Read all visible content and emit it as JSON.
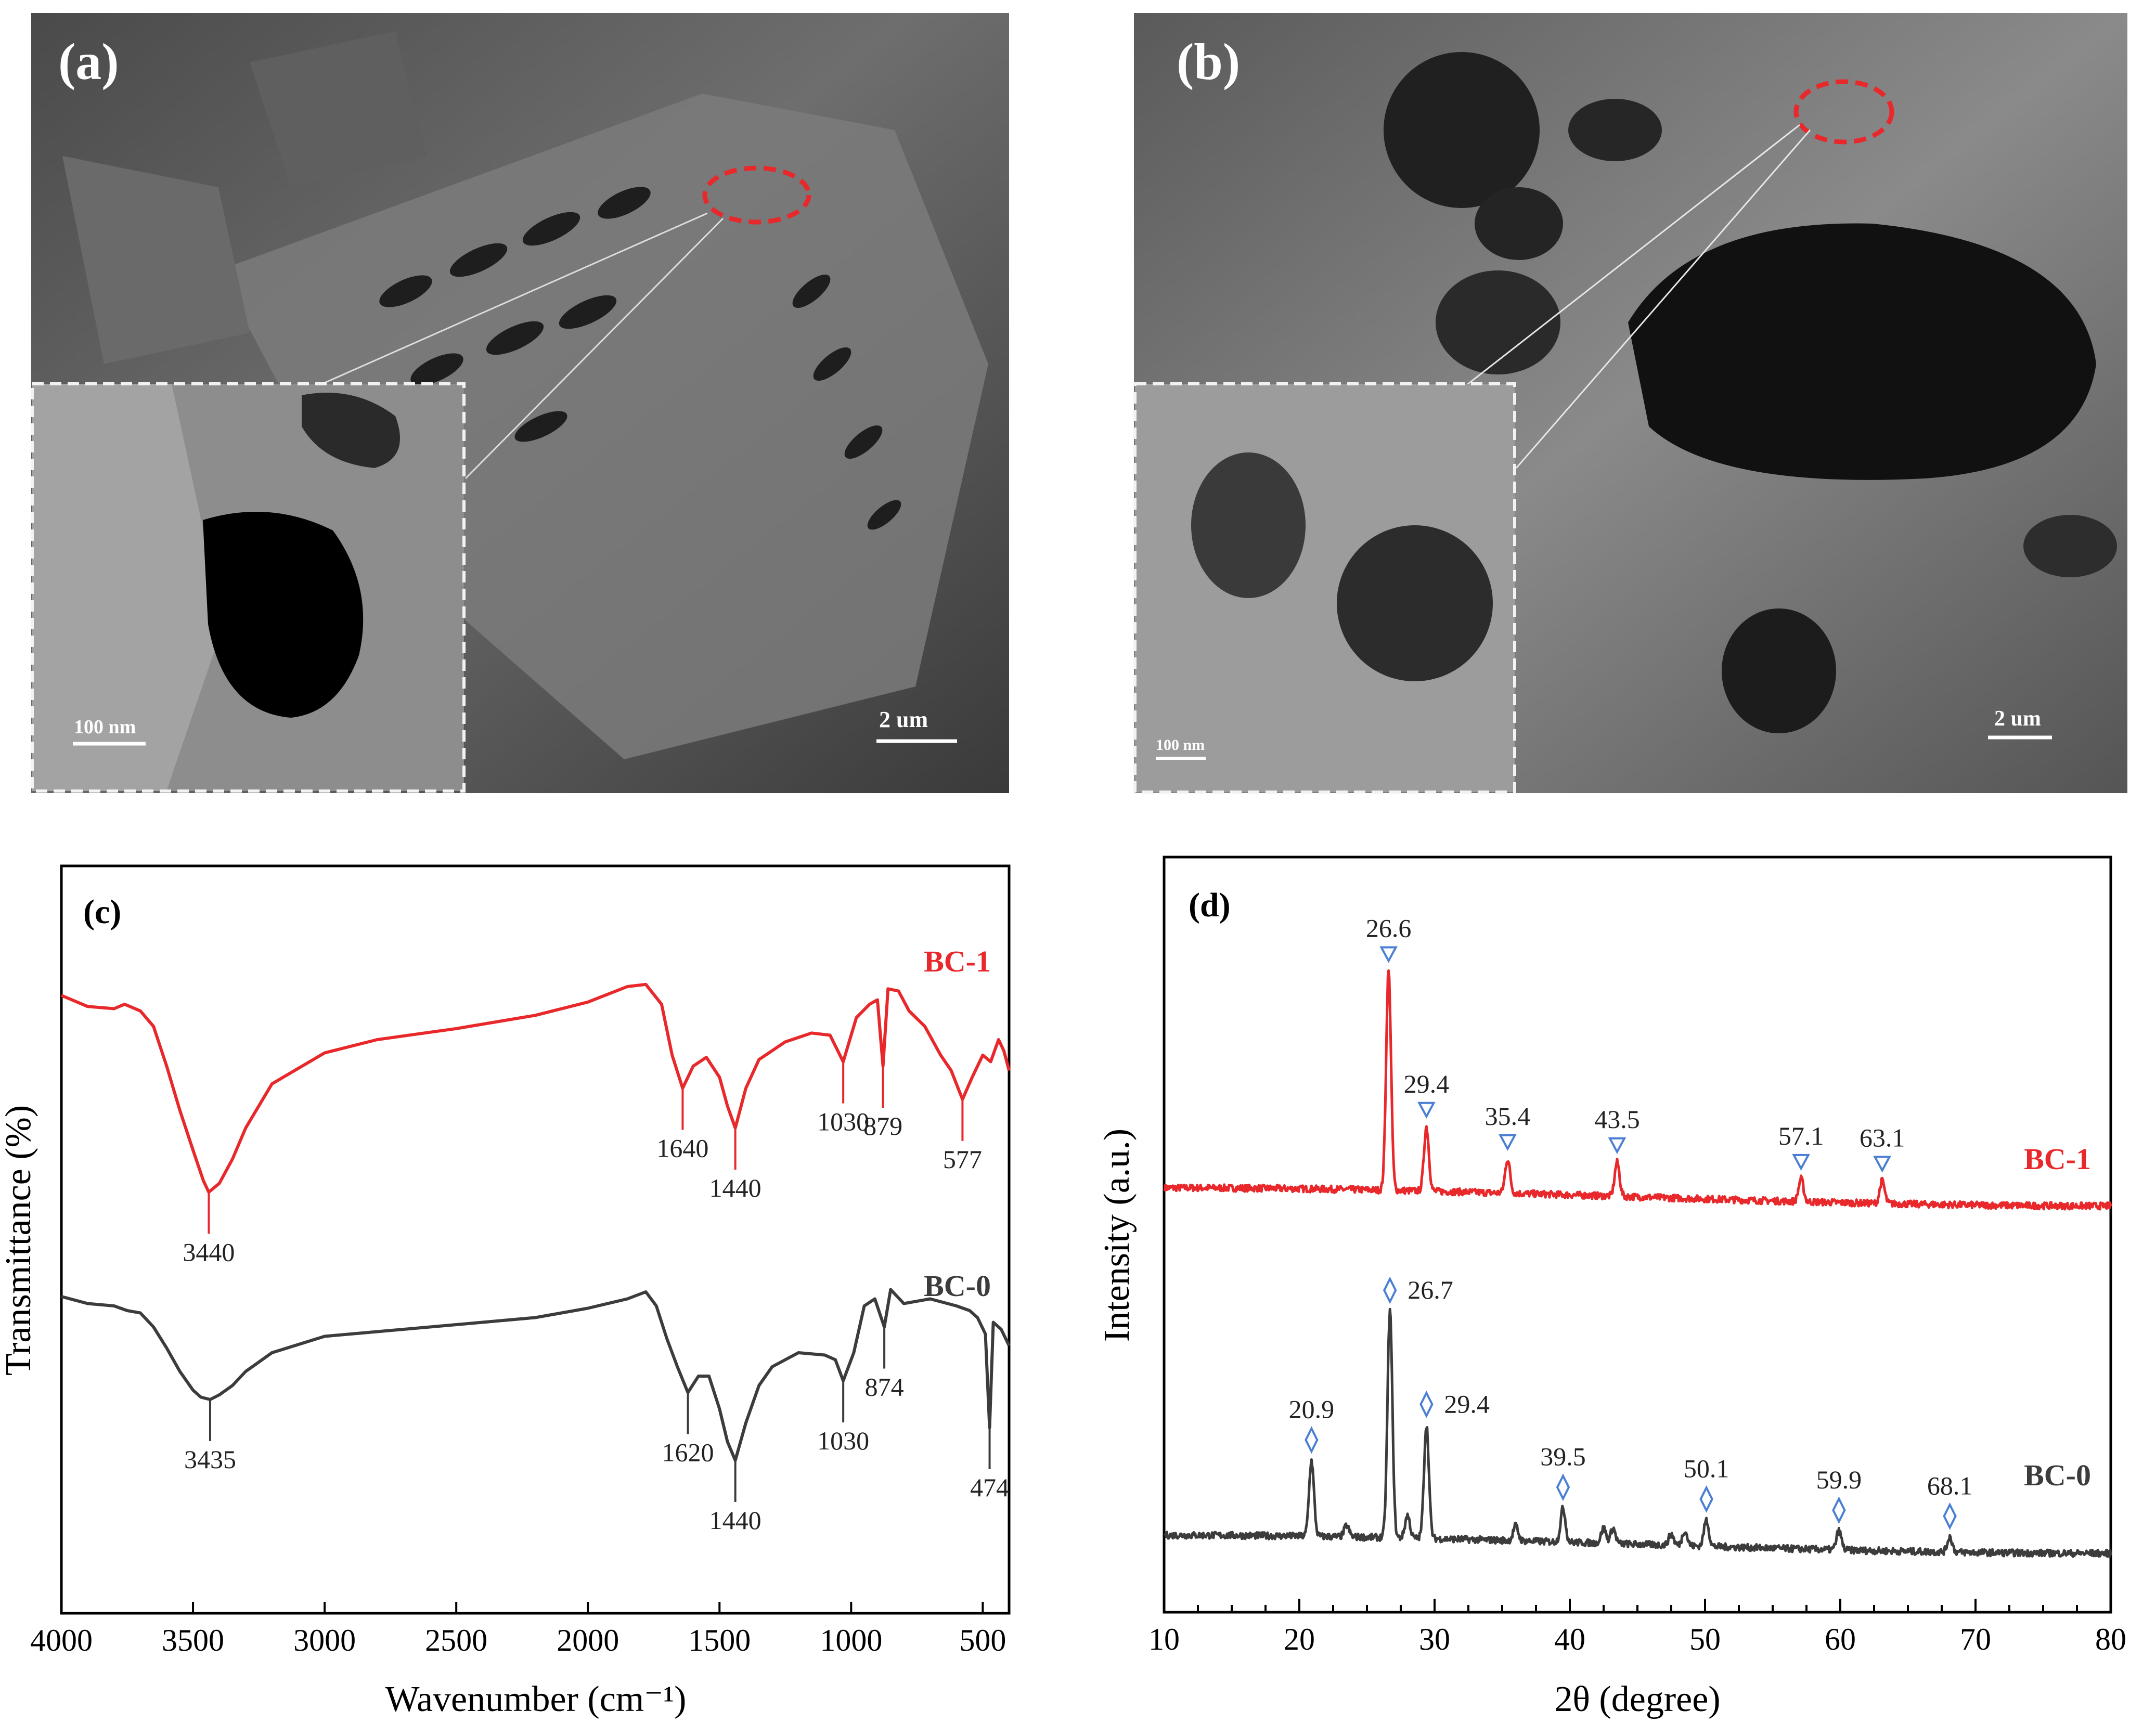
{
  "panels": {
    "a": {
      "label": "(a)",
      "scale_main": "2 um",
      "scale_inset": "100 nm"
    },
    "b": {
      "label": "(b)",
      "scale_main": "2 um",
      "scale_inset": "100 nm"
    },
    "c": {
      "label": "(c)"
    },
    "d": {
      "label": "(d)"
    }
  },
  "colors": {
    "bc1": "#e8282b",
    "bc0": "#3c3c3c",
    "marker": "#4a7fd4",
    "frame": "#000000"
  },
  "chart_data": [
    {
      "id": "c",
      "type": "line",
      "xlabel": "Wavenumber (cm⁻¹)",
      "ylabel": "Transmittance (%)",
      "xlim": [
        4000,
        400
      ],
      "xticks": [
        4000,
        3500,
        3000,
        2500,
        2000,
        1500,
        1000,
        500
      ],
      "series": [
        {
          "name": "BC-1",
          "color": "#e8282b",
          "x": [
            4000,
            3900,
            3800,
            3760,
            3700,
            3650,
            3600,
            3550,
            3500,
            3460,
            3440,
            3400,
            3350,
            3300,
            3200,
            3000,
            2800,
            2500,
            2200,
            2000,
            1850,
            1780,
            1720,
            1680,
            1640,
            1600,
            1550,
            1500,
            1470,
            1440,
            1400,
            1350,
            1250,
            1150,
            1080,
            1030,
            980,
            930,
            900,
            879,
            860,
            820,
            780,
            720,
            660,
            620,
            577,
            540,
            500,
            470,
            440,
            420,
            400
          ],
          "y": [
            0.92,
            0.87,
            0.86,
            0.88,
            0.85,
            0.78,
            0.6,
            0.4,
            0.22,
            0.08,
            0.03,
            0.07,
            0.18,
            0.32,
            0.52,
            0.66,
            0.72,
            0.77,
            0.83,
            0.89,
            0.96,
            0.97,
            0.88,
            0.65,
            0.5,
            0.6,
            0.64,
            0.55,
            0.42,
            0.32,
            0.5,
            0.63,
            0.71,
            0.75,
            0.74,
            0.62,
            0.82,
            0.88,
            0.9,
            0.6,
            0.95,
            0.94,
            0.85,
            0.78,
            0.65,
            0.58,
            0.45,
            0.55,
            0.65,
            0.62,
            0.72,
            0.67,
            0.58
          ]
        },
        {
          "name": "BC-0",
          "color": "#3c3c3c",
          "x": [
            4000,
            3900,
            3800,
            3750,
            3700,
            3650,
            3600,
            3550,
            3500,
            3470,
            3435,
            3400,
            3350,
            3300,
            3200,
            3000,
            2800,
            2500,
            2200,
            2000,
            1850,
            1780,
            1740,
            1700,
            1660,
            1620,
            1580,
            1540,
            1500,
            1470,
            1440,
            1400,
            1350,
            1300,
            1200,
            1100,
            1060,
            1030,
            990,
            950,
            910,
            874,
            850,
            800,
            700,
            600,
            550,
            520,
            490,
            474,
            460,
            430,
            400
          ],
          "y": [
            0.96,
            0.93,
            0.92,
            0.9,
            0.89,
            0.83,
            0.74,
            0.64,
            0.56,
            0.53,
            0.52,
            0.54,
            0.58,
            0.64,
            0.72,
            0.79,
            0.81,
            0.84,
            0.87,
            0.91,
            0.95,
            0.98,
            0.92,
            0.78,
            0.66,
            0.55,
            0.62,
            0.62,
            0.48,
            0.34,
            0.26,
            0.42,
            0.58,
            0.66,
            0.72,
            0.71,
            0.69,
            0.6,
            0.72,
            0.92,
            0.95,
            0.83,
            0.99,
            0.93,
            0.95,
            0.92,
            0.9,
            0.87,
            0.8,
            0.4,
            0.85,
            0.82,
            0.75
          ]
        }
      ],
      "annotations": [
        {
          "series": "BC-1",
          "x": 3440,
          "label": "3440"
        },
        {
          "series": "BC-1",
          "x": 1640,
          "label": "1640"
        },
        {
          "series": "BC-1",
          "x": 1440,
          "label": "1440"
        },
        {
          "series": "BC-1",
          "x": 1030,
          "label": "1030"
        },
        {
          "series": "BC-1",
          "x": 879,
          "label": "879"
        },
        {
          "series": "BC-1",
          "x": 577,
          "label": "577"
        },
        {
          "series": "BC-0",
          "x": 3435,
          "label": "3435"
        },
        {
          "series": "BC-0",
          "x": 1620,
          "label": "1620"
        },
        {
          "series": "BC-0",
          "x": 1440,
          "label": "1440"
        },
        {
          "series": "BC-0",
          "x": 1030,
          "label": "1030"
        },
        {
          "series": "BC-0",
          "x": 874,
          "label": "874"
        },
        {
          "series": "BC-0",
          "x": 474,
          "label": "474"
        }
      ],
      "grid": false
    },
    {
      "id": "d",
      "type": "line",
      "xlabel": "2θ (degree)",
      "ylabel": "Intensity (a.u.)",
      "xlim": [
        10,
        80
      ],
      "xticks": [
        10,
        20,
        30,
        40,
        50,
        60,
        70,
        80
      ],
      "series": [
        {
          "name": "BC-1",
          "color": "#e8282b",
          "baseline": 0.55,
          "peaks": [
            [
              26.6,
              0.29
            ],
            [
              29.4,
              0.085
            ],
            [
              35.4,
              0.045
            ],
            [
              43.5,
              0.045
            ],
            [
              57.1,
              0.03
            ],
            [
              63.1,
              0.03
            ]
          ]
        },
        {
          "name": "BC-0",
          "color": "#3c3c3c",
          "baseline": 0.09,
          "peaks": [
            [
              20.9,
              0.1
            ],
            [
              23.5,
              0.015
            ],
            [
              26.7,
              0.3
            ],
            [
              28.0,
              0.03
            ],
            [
              29.4,
              0.15
            ],
            [
              36.0,
              0.02
            ],
            [
              39.5,
              0.045
            ],
            [
              42.5,
              0.02
            ],
            [
              43.2,
              0.02
            ],
            [
              47.5,
              0.015
            ],
            [
              48.5,
              0.02
            ],
            [
              50.1,
              0.035
            ],
            [
              59.9,
              0.025
            ],
            [
              68.1,
              0.02
            ]
          ]
        }
      ],
      "annotations": [
        {
          "series": "BC-1",
          "x": 26.6,
          "label": "26.6",
          "marker": "triangle"
        },
        {
          "series": "BC-1",
          "x": 29.4,
          "label": "29.4",
          "marker": "triangle"
        },
        {
          "series": "BC-1",
          "x": 35.4,
          "label": "35.4",
          "marker": "triangle"
        },
        {
          "series": "BC-1",
          "x": 43.5,
          "label": "43.5",
          "marker": "triangle"
        },
        {
          "series": "BC-1",
          "x": 57.1,
          "label": "57.1",
          "marker": "triangle"
        },
        {
          "series": "BC-1",
          "x": 63.1,
          "label": "63.1",
          "marker": "triangle"
        },
        {
          "series": "BC-0",
          "x": 20.9,
          "label": "20.9",
          "marker": "diamond"
        },
        {
          "series": "BC-0",
          "x": 26.7,
          "label": "26.7",
          "marker": "diamond"
        },
        {
          "series": "BC-0",
          "x": 29.4,
          "label": "29.4",
          "marker": "diamond"
        },
        {
          "series": "BC-0",
          "x": 39.5,
          "label": "39.5",
          "marker": "diamond"
        },
        {
          "series": "BC-0",
          "x": 50.1,
          "label": "50.1",
          "marker": "diamond"
        },
        {
          "series": "BC-0",
          "x": 59.9,
          "label": "59.9",
          "marker": "diamond"
        },
        {
          "series": "BC-0",
          "x": 68.1,
          "label": "68.1",
          "marker": "diamond"
        }
      ],
      "grid": false
    }
  ]
}
